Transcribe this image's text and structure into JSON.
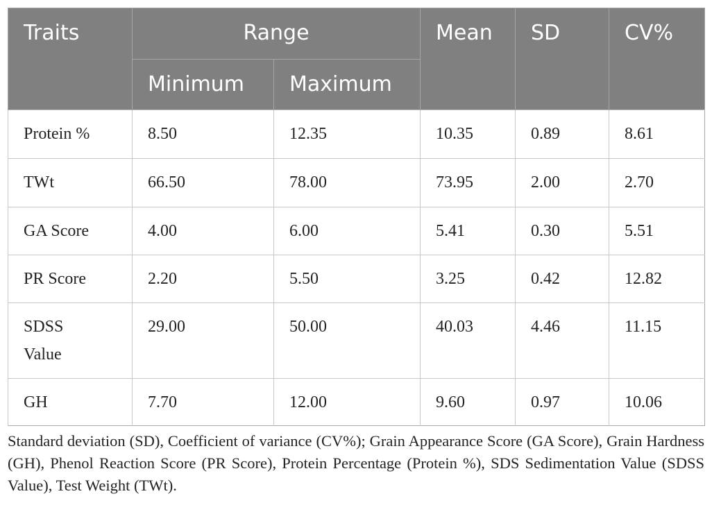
{
  "header": {
    "traits": "Traits",
    "range": "Range",
    "minimum": "Minimum",
    "maximum": "Maximum",
    "mean": "Mean",
    "sd": "SD",
    "cv": "CV%"
  },
  "table": {
    "rows": [
      [
        "Protein %",
        "8.50",
        "12.35",
        "10.35",
        "0.89",
        "8.61"
      ],
      [
        "TWt",
        "66.50",
        "78.00",
        "73.95",
        "2.00",
        "2.70"
      ],
      [
        "GA Score",
        "4.00",
        "6.00",
        "5.41",
        "0.30",
        "5.51"
      ],
      [
        "PR Score",
        "2.20",
        "5.50",
        "3.25",
        "0.42",
        "12.82"
      ],
      [
        "SDSS Value",
        "29.00",
        "50.00",
        "40.03",
        "4.46",
        "11.15"
      ],
      [
        "GH",
        "7.70",
        "12.00",
        "9.60",
        "0.97",
        "10.06"
      ]
    ]
  },
  "footnote": "Standard deviation (SD), Coefficient of variance (CV%); Grain Appearance Score (GA Score), Grain Hardness (GH), Phenol Reaction Score (PR Score), Protein Percentage (Protein %), SDS Sedimentation Value (SDSS Value), Test Weight (TWt)."
}
